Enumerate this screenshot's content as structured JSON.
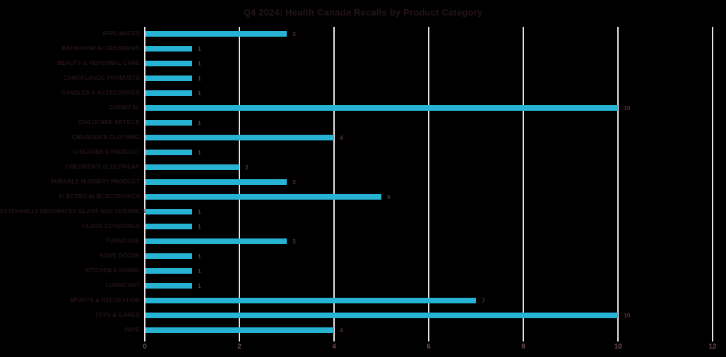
{
  "chart_data": {
    "type": "bar",
    "orientation": "horizontal",
    "title": "Q4 2024: Health Canada Recalls by Product Category",
    "categories": [
      "APPLIANCES",
      "BATHROOM ACCESSORIES",
      "BEAUTY & PERSONAL CARE",
      "CAMOFLAUGE PRODUCTS",
      "CANDLES & ACCESSORIES",
      "CHEMICAL",
      "CHILDCARE ARTICLE",
      "CHILDREN'S CLOTHING",
      "CHILDREN'S PRODUCT",
      "CHILDREN'S SLEEPWEAR",
      "DURABLE NURSERY PRODUCT",
      "ELECTRICAL/ELECTRONICS",
      "EXTERNALLY DECORATED GLASS AND CERAMICS",
      "FLOOR COVERINGS",
      "FURNITURE",
      "HOME DÉCOR",
      "KITCHEN & DINING",
      "LUBRICANT",
      "SPORTS & RECREATION",
      "TOYS & GAMES",
      "VAPE"
    ],
    "values": [
      3,
      1,
      1,
      1,
      1,
      10,
      1,
      4,
      1,
      2,
      3,
      5,
      1,
      1,
      3,
      1,
      1,
      1,
      7,
      10,
      4
    ],
    "value_labels": [
      "3",
      "1",
      "1",
      "1",
      "1",
      "10",
      "1",
      "4",
      "1",
      "2",
      "3",
      "5",
      "1",
      "1",
      "3",
      "1",
      "1",
      "1",
      "7",
      "10",
      "4"
    ],
    "xlabel": "",
    "ylabel": "",
    "xlim": [
      0,
      12
    ],
    "x_ticks": [
      0,
      2,
      4,
      6,
      8,
      10,
      12
    ],
    "grid": "vertical-only",
    "legend": "none"
  },
  "colors": {
    "background": "#000000",
    "bar": "#27b3d4",
    "gridline": "#ece3e6",
    "title_text": "#241418",
    "category_text": "#23141a",
    "value_text": "#53303e",
    "tick_text": "#6e4a5c"
  }
}
